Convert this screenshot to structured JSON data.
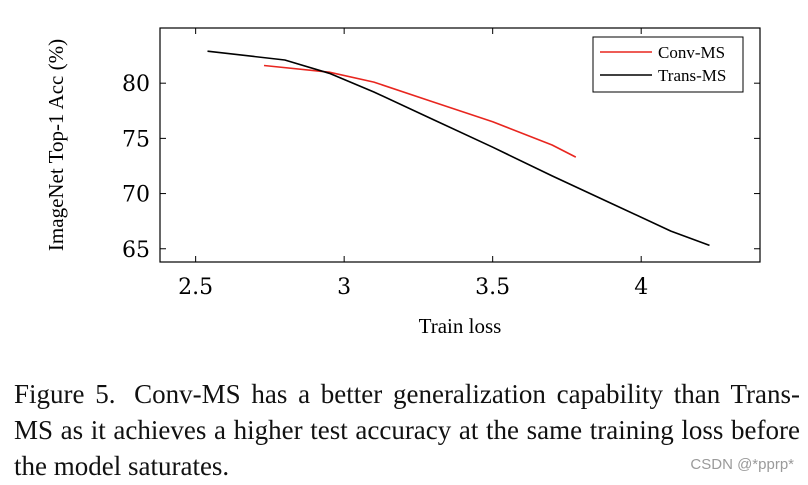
{
  "chart_data": {
    "type": "line",
    "xlabel": "Train loss",
    "ylabel": "ImageNet Top-1 Acc (%)",
    "xlim": [
      2.38,
      4.4
    ],
    "ylim": [
      63.8,
      85
    ],
    "xticks": [
      2.5,
      3,
      3.5,
      4
    ],
    "xtick_labels": [
      "2.5",
      "3",
      "3.5",
      "4"
    ],
    "yticks": [
      65,
      70,
      75,
      80
    ],
    "ytick_labels": [
      "65",
      "70",
      "75",
      "80"
    ],
    "legend_position": "top-right",
    "grid": false,
    "series": [
      {
        "name": "Conv-MS",
        "color": "#e8261f",
        "x": [
          2.73,
          2.95,
          3.1,
          3.3,
          3.5,
          3.7,
          3.78
        ],
        "y": [
          81.6,
          81.0,
          80.1,
          78.3,
          76.5,
          74.4,
          73.3
        ]
      },
      {
        "name": "Trans-MS",
        "color": "#000000",
        "x": [
          2.54,
          2.8,
          2.95,
          3.1,
          3.3,
          3.5,
          3.7,
          3.9,
          4.1,
          4.23
        ],
        "y": [
          82.9,
          82.1,
          80.9,
          79.2,
          76.7,
          74.2,
          71.6,
          69.1,
          66.6,
          65.3
        ]
      }
    ]
  },
  "caption": {
    "label": "Figure 5.",
    "text": "Conv-MS has a better generalization capability than Trans-MS as it achieves a higher test accuracy at the same training loss before the model saturates."
  },
  "watermark": "CSDN @*pprp*"
}
